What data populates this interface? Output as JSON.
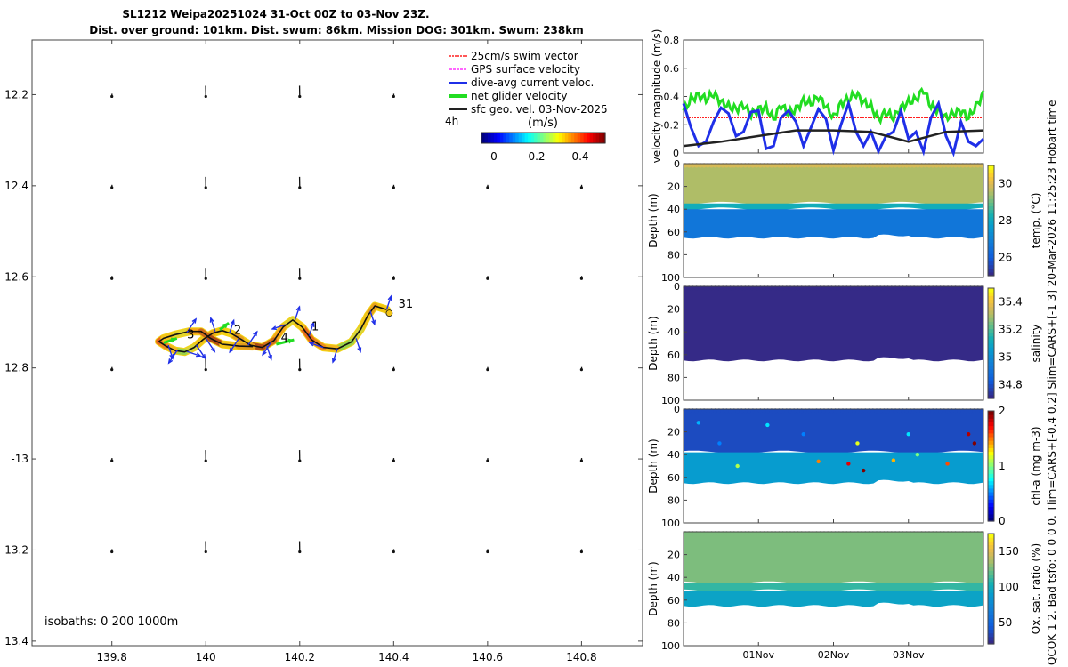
{
  "header": {
    "title": "SL1212 Weipa20251024 31-Oct 00Z to 03-Nov 23Z.",
    "subtitle": "Dist. over ground: 101km. Dist. swum: 86km. Mission DOG: 301km. Swum: 238km"
  },
  "side_label": "QCOK 1  2. Bad tsfo: 0  0  0  0. Tlim=CARS+[-0.4 0.2] Slim=CARS+[-1 3] 20-Mar-2026 11:25:23 Hobart time",
  "colors": {
    "swim": "#ff2020",
    "gps": "#ff33ff",
    "current": "#1f2fe8",
    "net": "#22dd22",
    "geo": "#222222"
  },
  "chart_data": [
    {
      "id": "map",
      "type": "scatter",
      "title": "Glider track map",
      "xlabel": "",
      "ylabel": "",
      "xlim": [
        139.63,
        140.93
      ],
      "ylim": [
        -13.41,
        -12.08
      ],
      "x_ticks": [
        139.8,
        140.0,
        140.2,
        140.4,
        140.6,
        140.8
      ],
      "x_tick_labels": [
        "139.8",
        "140",
        "140.2",
        "140.4",
        "140.6",
        "140.8"
      ],
      "y_ticks": [
        -12.2,
        -12.4,
        -12.6,
        -12.8,
        -13.0,
        -13.2,
        -13.4
      ],
      "y_tick_labels": [
        "12.2",
        "12.4",
        "12.6",
        "12.8",
        "-13",
        "13.2",
        "13.4"
      ],
      "legend": [
        "25cm/s swim vector",
        "GPS surface velocity",
        "dive-avg current veloc.",
        "net glider velocity",
        "sfc geo. vel. 03-Nov-2025"
      ],
      "legend_position": "top-right",
      "legend_extra": "4h",
      "colorbar": {
        "label": "(m/s)",
        "ticks": [
          "0",
          "0.2",
          "0.4"
        ],
        "range": [
          -0.08,
          0.5
        ]
      },
      "isobaths_label": "isobaths: 0   200  1000m",
      "day_labels": [
        {
          "text": "31",
          "lon": 140.41,
          "lat": -12.668
        },
        {
          "text": "1",
          "lon": 140.225,
          "lat": -12.718
        },
        {
          "text": "2",
          "lon": 140.06,
          "lat": -12.725
        },
        {
          "text": "3",
          "lon": 139.96,
          "lat": -12.735
        },
        {
          "text": "4",
          "lon": 140.16,
          "lat": -12.742
        }
      ],
      "track": [
        [
          140.385,
          -12.672
        ],
        [
          140.36,
          -12.664
        ],
        [
          140.345,
          -12.685
        ],
        [
          140.33,
          -12.715
        ],
        [
          140.31,
          -12.743
        ],
        [
          140.28,
          -12.758
        ],
        [
          140.25,
          -12.755
        ],
        [
          140.225,
          -12.738
        ],
        [
          140.205,
          -12.71
        ],
        [
          140.185,
          -12.695
        ],
        [
          140.165,
          -12.71
        ],
        [
          140.145,
          -12.74
        ],
        [
          140.12,
          -12.755
        ],
        [
          140.095,
          -12.75
        ],
        [
          140.075,
          -12.737
        ],
        [
          140.055,
          -12.725
        ],
        [
          140.035,
          -12.718
        ],
        [
          140.015,
          -12.724
        ],
        [
          139.995,
          -12.737
        ],
        [
          139.975,
          -12.755
        ],
        [
          139.955,
          -12.765
        ],
        [
          139.935,
          -12.762
        ],
        [
          139.915,
          -12.752
        ],
        [
          139.9,
          -12.742
        ],
        [
          139.91,
          -12.735
        ],
        [
          139.935,
          -12.727
        ],
        [
          139.965,
          -12.72
        ],
        [
          139.99,
          -12.72
        ],
        [
          140.01,
          -12.735
        ],
        [
          140.035,
          -12.748
        ],
        [
          140.07,
          -12.752
        ],
        [
          140.1,
          -12.753
        ]
      ],
      "current_arrows": [
        [
          140.385,
          -12.672,
          0.01,
          0.03
        ],
        [
          140.35,
          -12.675,
          0.01,
          -0.03
        ],
        [
          140.32,
          -12.735,
          0.01,
          -0.03
        ],
        [
          140.28,
          -12.758,
          -0.01,
          -0.03
        ],
        [
          140.25,
          -12.755,
          -0.03,
          0.01
        ],
        [
          140.22,
          -12.73,
          0.01,
          0.03
        ],
        [
          140.19,
          -12.695,
          0.01,
          0.03
        ],
        [
          140.17,
          -12.705,
          -0.03,
          -0.01
        ],
        [
          140.14,
          -12.742,
          -0.02,
          -0.03
        ],
        [
          140.13,
          -12.752,
          0.01,
          -0.03
        ],
        [
          140.09,
          -12.75,
          0.02,
          0.03
        ],
        [
          140.07,
          -12.736,
          -0.02,
          -0.03
        ],
        [
          140.05,
          -12.725,
          0.01,
          0.03
        ],
        [
          140.02,
          -12.72,
          -0.01,
          0.03
        ],
        [
          140.0,
          -12.735,
          0.02,
          -0.03
        ],
        [
          139.98,
          -12.75,
          0.02,
          -0.03
        ],
        [
          139.96,
          -12.764,
          0.03,
          -0.01
        ],
        [
          139.94,
          -12.76,
          -0.02,
          -0.03
        ],
        [
          139.92,
          -12.75,
          0.01,
          -0.03
        ],
        [
          139.96,
          -12.722,
          0.02,
          0.03
        ]
      ],
      "net_arrows": [
        [
          140.15,
          -12.748,
          0.04,
          0.01
        ],
        [
          140.03,
          -12.716,
          0.02,
          0.015
        ],
        [
          139.91,
          -12.745,
          0.03,
          0.01
        ]
      ],
      "geo_arrow_lons": [
        139.8,
        140.0,
        140.2,
        140.4,
        140.6,
        140.8
      ],
      "geo_arrow_lats": [
        -12.2,
        -12.4,
        -12.6,
        -12.8,
        -13.0,
        -13.2
      ]
    },
    {
      "id": "velocity",
      "type": "line",
      "title": "",
      "xlabel": "",
      "ylabel": "velocity magnitude (m/s)",
      "xlim": [
        0,
        4
      ],
      "ylim": [
        0,
        0.8
      ],
      "y_ticks": [
        0,
        0.2,
        0.4,
        0.6,
        0.8
      ],
      "y_tick_labels": [
        "0",
        "0.2",
        "0.4",
        "0.6",
        "0.8"
      ],
      "series": [
        {
          "name": "25cm/s swim vector",
          "color": "#ff2020",
          "x": [
            0,
            4
          ],
          "values": [
            0.25,
            0.25
          ]
        },
        {
          "name": "net glider velocity",
          "color": "#22dd22",
          "x": [
            0,
            0.1,
            0.2,
            0.3,
            0.4,
            0.5,
            0.6,
            0.7,
            0.8,
            0.9,
            1.0,
            1.1,
            1.2,
            1.3,
            1.4,
            1.5,
            1.6,
            1.7,
            1.8,
            1.9,
            2.0,
            2.1,
            2.2,
            2.3,
            2.4,
            2.5,
            2.6,
            2.7,
            2.8,
            2.9,
            3.0,
            3.1,
            3.2,
            3.3,
            3.4,
            3.5,
            3.6,
            3.7,
            3.8,
            3.9,
            4.0
          ],
          "values": [
            0.3,
            0.38,
            0.41,
            0.38,
            0.42,
            0.36,
            0.33,
            0.31,
            0.34,
            0.27,
            0.31,
            0.32,
            0.24,
            0.34,
            0.28,
            0.31,
            0.37,
            0.35,
            0.4,
            0.33,
            0.25,
            0.35,
            0.38,
            0.42,
            0.36,
            0.33,
            0.24,
            0.29,
            0.25,
            0.32,
            0.36,
            0.38,
            0.45,
            0.33,
            0.3,
            0.25,
            0.28,
            0.3,
            0.25,
            0.33,
            0.42
          ]
        },
        {
          "name": "dive-avg current veloc.",
          "color": "#1f2fe8",
          "x": [
            0,
            0.1,
            0.2,
            0.3,
            0.4,
            0.5,
            0.6,
            0.7,
            0.8,
            0.9,
            1.0,
            1.1,
            1.2,
            1.3,
            1.4,
            1.5,
            1.6,
            1.7,
            1.8,
            1.9,
            2.0,
            2.1,
            2.2,
            2.3,
            2.4,
            2.5,
            2.6,
            2.7,
            2.8,
            2.9,
            3.0,
            3.1,
            3.2,
            3.3,
            3.4,
            3.5,
            3.6,
            3.7,
            3.8,
            3.9,
            4.0
          ],
          "values": [
            0.35,
            0.18,
            0.05,
            0.08,
            0.22,
            0.32,
            0.28,
            0.12,
            0.15,
            0.29,
            0.3,
            0.03,
            0.05,
            0.25,
            0.3,
            0.22,
            0.05,
            0.18,
            0.31,
            0.24,
            0.02,
            0.2,
            0.35,
            0.15,
            0.05,
            0.15,
            0.01,
            0.12,
            0.15,
            0.3,
            0.1,
            0.15,
            0.01,
            0.25,
            0.35,
            0.12,
            0.0,
            0.22,
            0.08,
            0.05,
            0.1
          ]
        },
        {
          "name": "sfc geo. vel.",
          "color": "#222222",
          "x": [
            0,
            0.5,
            1.0,
            1.5,
            2.0,
            2.5,
            3.0,
            3.5,
            4.0
          ],
          "values": [
            0.05,
            0.08,
            0.12,
            0.16,
            0.16,
            0.15,
            0.08,
            0.15,
            0.16
          ]
        }
      ]
    },
    {
      "id": "temp",
      "type": "heatmap",
      "ylabel": "Depth (m)",
      "clabel": "temp. (°C)",
      "ylim": [
        100,
        0
      ],
      "y_ticks": [
        0,
        20,
        40,
        60,
        80,
        100
      ],
      "y_tick_labels": [
        "0",
        "20",
        "40",
        "60",
        "80",
        "100"
      ],
      "c_ticks": [
        "26",
        "28",
        "30"
      ],
      "c_range": [
        25,
        31
      ],
      "layers": [
        {
          "from": 0,
          "to": 35,
          "value": 29.6
        },
        {
          "from": 35,
          "to": 40,
          "value": 28.2
        },
        {
          "from": 40,
          "to": 65,
          "value": 26.6
        }
      ]
    },
    {
      "id": "salinity",
      "type": "heatmap",
      "ylabel": "Depth (m)",
      "clabel": "salinity",
      "ylim": [
        100,
        0
      ],
      "y_ticks": [
        0,
        20,
        40,
        60,
        80,
        100
      ],
      "y_tick_labels": [
        "0",
        "20",
        "40",
        "60",
        "80",
        "100"
      ],
      "c_ticks": [
        "34.8",
        "35",
        "35.2",
        "35.4"
      ],
      "c_range": [
        34.7,
        35.5
      ],
      "layers": [
        {
          "from": 0,
          "to": 65,
          "value": 34.7
        }
      ]
    },
    {
      "id": "chla",
      "type": "heatmap",
      "ylabel": "Depth (m)",
      "clabel": "chl-a (mg m-3)",
      "ylim": [
        100,
        0
      ],
      "y_ticks": [
        0,
        20,
        40,
        60,
        80,
        100
      ],
      "y_tick_labels": [
        "0",
        "20",
        "40",
        "60",
        "80",
        "100"
      ],
      "c_ticks": [
        "0",
        "1",
        "2"
      ],
      "c_range": [
        0,
        2
      ],
      "layers": [
        {
          "from": 0,
          "to": 38,
          "value": 0.2
        },
        {
          "from": 38,
          "to": 65,
          "value": 0.9
        }
      ]
    },
    {
      "id": "oxygen",
      "type": "heatmap",
      "ylabel": "Depth (m)",
      "clabel": "Ox. sat. ratio (%)",
      "ylim": [
        100,
        0
      ],
      "y_ticks": [
        0,
        20,
        40,
        60,
        80,
        100
      ],
      "y_tick_labels": [
        "",
        "20",
        "40",
        "60",
        "80",
        "100"
      ],
      "c_ticks": [
        "50",
        "100",
        "150"
      ],
      "c_range": [
        20,
        175
      ],
      "layers": [
        {
          "from": 0,
          "to": 45,
          "value": 128
        },
        {
          "from": 45,
          "to": 52,
          "value": 112
        },
        {
          "from": 52,
          "to": 65,
          "value": 95
        }
      ],
      "x_tick_labels": [
        "01Nov",
        "02Nov",
        "03Nov"
      ],
      "x_ticks": [
        1,
        2,
        3
      ]
    }
  ]
}
